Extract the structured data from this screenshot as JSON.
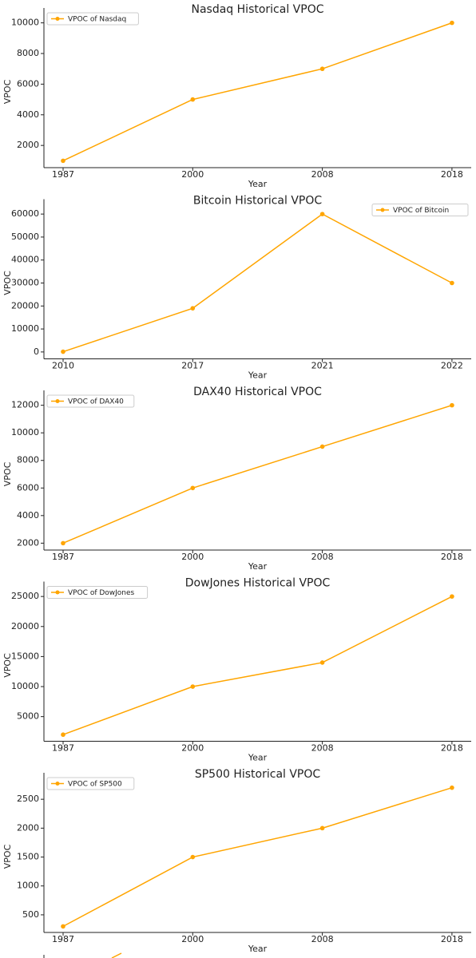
{
  "chart_data": [
    {
      "type": "line",
      "title": "Nasdaq Historical VPOC",
      "x_label": "Year",
      "y_label": "VPOC",
      "categories": [
        "1987",
        "2000",
        "2008",
        "2018"
      ],
      "series": [
        {
          "name": "VPOC of Nasdaq",
          "color": "#ffa500",
          "values": [
            1000,
            5000,
            7000,
            10000
          ]
        }
      ],
      "ylim": [
        550,
        10450
      ],
      "yticks": [
        2000,
        4000,
        6000,
        8000,
        10000
      ],
      "legend": "upper left"
    },
    {
      "type": "line",
      "title": "Bitcoin Historical VPOC",
      "x_label": "Year",
      "y_label": "VPOC",
      "categories": [
        "2010",
        "2017",
        "2021",
        "2022"
      ],
      "series": [
        {
          "name": "VPOC of Bitcoin",
          "color": "#ffa500",
          "values": [
            100,
            19000,
            60000,
            30000
          ]
        }
      ],
      "ylim": [
        -3000,
        63000
      ],
      "yticks": [
        0,
        10000,
        20000,
        30000,
        40000,
        50000,
        60000
      ],
      "legend": "upper right"
    },
    {
      "type": "line",
      "title": "DAX40 Historical VPOC",
      "x_label": "Year",
      "y_label": "VPOC",
      "categories": [
        "1987",
        "2000",
        "2008",
        "2018"
      ],
      "series": [
        {
          "name": "VPOC of DAX40",
          "color": "#ffa500",
          "values": [
            2000,
            6000,
            9000,
            12000
          ]
        }
      ],
      "ylim": [
        1500,
        12500
      ],
      "yticks": [
        2000,
        4000,
        6000,
        8000,
        10000,
        12000
      ],
      "legend": "upper left"
    },
    {
      "type": "line",
      "title": "DowJones Historical VPOC",
      "x_label": "Year",
      "y_label": "VPOC",
      "categories": [
        "1987",
        "2000",
        "2008",
        "2018"
      ],
      "series": [
        {
          "name": "VPOC of DowJones",
          "color": "#ffa500",
          "values": [
            2000,
            10000,
            14000,
            25000
          ]
        }
      ],
      "ylim": [
        900,
        26150
      ],
      "yticks": [
        5000,
        10000,
        15000,
        20000,
        25000
      ],
      "legend": "upper left"
    },
    {
      "type": "line",
      "title": "SP500 Historical VPOC",
      "x_label": "Year",
      "y_label": "VPOC",
      "categories": [
        "1987",
        "2000",
        "2008",
        "2018"
      ],
      "series": [
        {
          "name": "VPOC of SP500",
          "color": "#ffa500",
          "values": [
            300,
            1500,
            2000,
            2700
          ]
        }
      ],
      "ylim": [
        195,
        2820
      ],
      "yticks": [
        500,
        1000,
        1500,
        2000,
        2500
      ],
      "legend": "upper left"
    }
  ]
}
